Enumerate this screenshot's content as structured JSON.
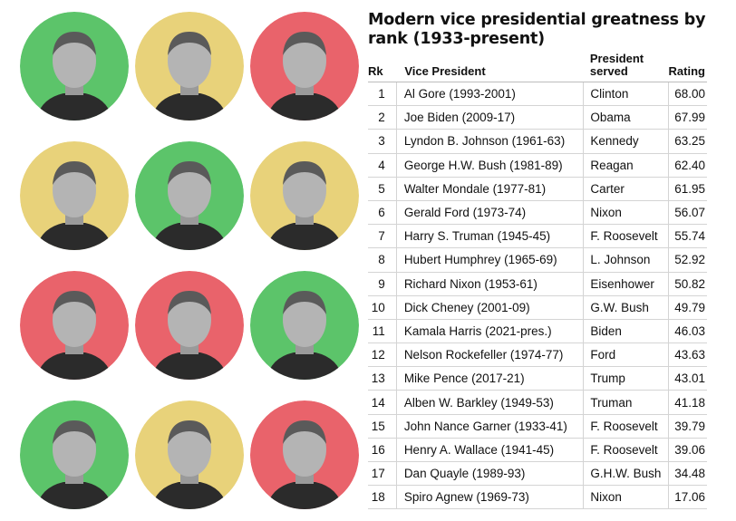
{
  "title": "Modern vice presidential greatness by rank (1933-present)",
  "headers": {
    "rank": "Rk",
    "vice_president": "Vice President",
    "president": "President served",
    "rating": "Rating"
  },
  "colors": {
    "green": "#5cc46a",
    "yellow": "#e8d27a",
    "red": "#e9636b"
  },
  "portraits": [
    {
      "bg": "green"
    },
    {
      "bg": "yellow"
    },
    {
      "bg": "red"
    },
    {
      "bg": "yellow"
    },
    {
      "bg": "green"
    },
    {
      "bg": "yellow"
    },
    {
      "bg": "red"
    },
    {
      "bg": "red"
    },
    {
      "bg": "green"
    },
    {
      "bg": "green"
    },
    {
      "bg": "yellow"
    },
    {
      "bg": "red"
    }
  ],
  "rows": [
    {
      "rank": "1",
      "vp": "Al Gore (1993-2001)",
      "president": "Clinton",
      "rating": "68.00"
    },
    {
      "rank": "2",
      "vp": "Joe Biden (2009-17)",
      "president": "Obama",
      "rating": "67.99"
    },
    {
      "rank": "3",
      "vp": "Lyndon B. Johnson (1961-63)",
      "president": "Kennedy",
      "rating": "63.25"
    },
    {
      "rank": "4",
      "vp": "George H.W. Bush (1981-89)",
      "president": "Reagan",
      "rating": "62.40"
    },
    {
      "rank": "5",
      "vp": "Walter Mondale (1977-81)",
      "president": "Carter",
      "rating": "61.95"
    },
    {
      "rank": "6",
      "vp": "Gerald Ford (1973-74)",
      "president": "Nixon",
      "rating": "56.07"
    },
    {
      "rank": "7",
      "vp": "Harry S. Truman (1945-45)",
      "president": "F. Roosevelt",
      "rating": "55.74"
    },
    {
      "rank": "8",
      "vp": "Hubert Humphrey (1965-69)",
      "president": "L. Johnson",
      "rating": "52.92"
    },
    {
      "rank": "9",
      "vp": "Richard Nixon (1953-61)",
      "president": "Eisenhower",
      "rating": "50.82"
    },
    {
      "rank": "10",
      "vp": "Dick Cheney (2001-09)",
      "president": "G.W. Bush",
      "rating": "49.79"
    },
    {
      "rank": "11",
      "vp": "Kamala Harris (2021-pres.)",
      "president": "Biden",
      "rating": "46.03"
    },
    {
      "rank": "12",
      "vp": "Nelson Rockefeller (1974-77)",
      "president": "Ford",
      "rating": "43.63"
    },
    {
      "rank": "13",
      "vp": "Mike Pence (2017-21)",
      "president": "Trump",
      "rating": "43.01"
    },
    {
      "rank": "14",
      "vp": "Alben W. Barkley (1949-53)",
      "president": "Truman",
      "rating": "41.18"
    },
    {
      "rank": "15",
      "vp": "John Nance Garner (1933-41)",
      "president": "F. Roosevelt",
      "rating": "39.79"
    },
    {
      "rank": "16",
      "vp": "Henry A. Wallace (1941-45)",
      "president": "F. Roosevelt",
      "rating": "39.06"
    },
    {
      "rank": "17",
      "vp": "Dan Quayle (1989-93)",
      "president": "G.H.W. Bush",
      "rating": "34.48"
    },
    {
      "rank": "18",
      "vp": "Spiro Agnew (1969-73)",
      "president": "Nixon",
      "rating": "17.06"
    }
  ]
}
